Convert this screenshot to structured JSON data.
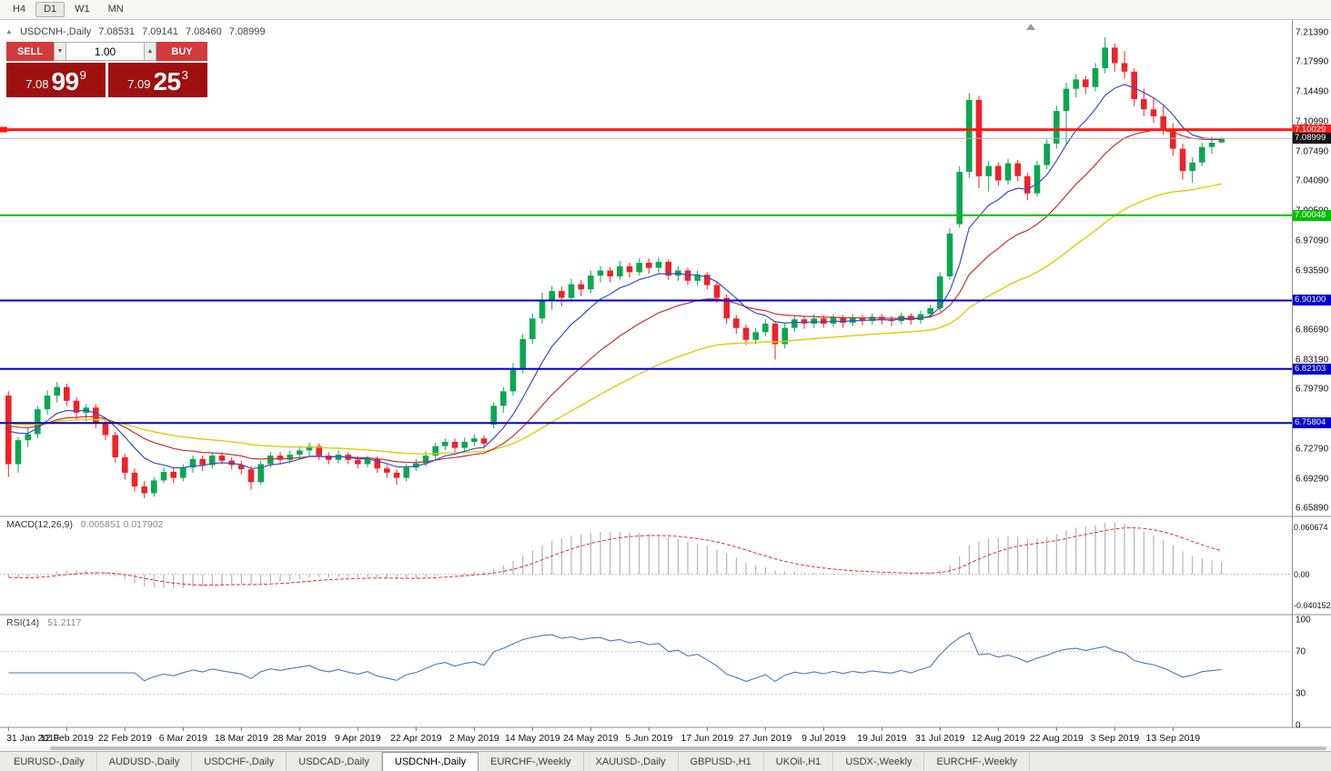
{
  "toolbar": {
    "timeframes": [
      {
        "label": "H4",
        "active": false
      },
      {
        "label": "D1",
        "active": true
      },
      {
        "label": "W1",
        "active": false
      },
      {
        "label": "MN",
        "active": false
      }
    ]
  },
  "icons": {
    "collapse_arrow": "▲",
    "spin_up": "▲",
    "spin_down": "▼"
  },
  "chart_header": {
    "symbol": "USDCNH-,Daily",
    "open": "7.08531",
    "high": "7.09141",
    "low": "7.08460",
    "close": "7.08999"
  },
  "trade_panel": {
    "sell_label": "SELL",
    "buy_label": "BUY",
    "volume": "1.00",
    "sell_price": {
      "whole": "7.08",
      "pips": "99",
      "pipette": "9"
    },
    "buy_price": {
      "whole": "7.09",
      "pips": "25",
      "pipette": "3"
    }
  },
  "price_axis": {
    "labels": [
      "7.21390",
      "7.17990",
      "7.14490",
      "7.10990",
      "7.07490",
      "7.04090",
      "7.00590",
      "6.97090",
      "6.93590",
      "6.86690",
      "6.83190",
      "6.79790",
      "6.72790",
      "6.69290",
      "6.65890"
    ]
  },
  "current_price": {
    "text": "7.08999",
    "value": 7.08999,
    "badge_bg": "#141414",
    "badge_fg": "#ffffff",
    "line_color": "#b6b6b6"
  },
  "indicators": {
    "macd": {
      "name": "MACD(12,26,9)",
      "values": "0.005851 0.017902",
      "fast": 12,
      "slow": 26,
      "signal": 9,
      "axis": [
        {
          "text": "0.060674",
          "value": 0.060674
        },
        {
          "text": "0.00",
          "value": 0
        },
        {
          "text": "-0.040152",
          "value": -0.040152
        }
      ],
      "histogram_color": "#a6a6a6",
      "signal_color": "#e03232"
    },
    "rsi": {
      "name": "RSI(14)",
      "value": "51.2117",
      "period": 14,
      "axis": [
        {
          "text": "100",
          "value": 100
        },
        {
          "text": "70",
          "value": 70
        },
        {
          "text": "30",
          "value": 30
        },
        {
          "text": "0",
          "value": 0
        }
      ],
      "level_lines": [
        70,
        30
      ],
      "line_color": "#4a7ab5"
    }
  },
  "chart_data": {
    "type": "candlestick",
    "symbol": "USDCNH",
    "timeframe": "Daily",
    "up_color": "#0aa84f",
    "down_color": "#ef2228",
    "price_range": [
      6.649,
      7.224
    ],
    "bars_per_label": 6,
    "x_labels": [
      "31 Jan 2019",
      "12 Feb 2019",
      "22 Feb 2019",
      "6 Mar 2019",
      "18 Mar 2019",
      "28 Mar 2019",
      "9 Apr 2019",
      "22 Apr 2019",
      "2 May 2019",
      "14 May 2019",
      "24 May 2019",
      "5 Jun 2019",
      "17 Jun 2019",
      "27 Jun 2019",
      "9 Jul 2019",
      "19 Jul 2019",
      "31 Jul 2019",
      "12 Aug 2019",
      "22 Aug 2019",
      "3 Sep 2019",
      "13 Sep 2019"
    ],
    "levels": [
      {
        "text": "7.10029",
        "value": 7.10029,
        "color": "#ff1a1a",
        "width": 3,
        "left_marker": true
      },
      {
        "text": "7.00048",
        "value": 7.00048,
        "color": "#00c000",
        "width": 2
      },
      {
        "text": "6.90100",
        "value": 6.901,
        "color": "#0000cc",
        "width": 2
      },
      {
        "text": "6.82103",
        "value": 6.82103,
        "color": "#0000cc",
        "width": 2
      },
      {
        "text": "6.75804",
        "value": 6.75804,
        "color": "#0000cc",
        "width": 2
      }
    ],
    "moving_averages": [
      {
        "period": 8,
        "color": "#3b4cc8"
      },
      {
        "period": 20,
        "color": "#c83232"
      },
      {
        "period": 45,
        "color": "#e0cc00"
      }
    ],
    "candles": [
      [
        6.79,
        6.795,
        6.695,
        6.71
      ],
      [
        6.71,
        6.742,
        6.7,
        6.738
      ],
      [
        6.738,
        6.752,
        6.73,
        6.745
      ],
      [
        6.745,
        6.778,
        6.74,
        6.774
      ],
      [
        6.774,
        6.796,
        6.768,
        6.79
      ],
      [
        6.79,
        6.806,
        6.782,
        6.8
      ],
      [
        6.8,
        6.804,
        6.778,
        6.784
      ],
      [
        6.784,
        6.788,
        6.762,
        6.77
      ],
      [
        6.77,
        6.78,
        6.76,
        6.776
      ],
      [
        6.776,
        6.78,
        6.752,
        6.758
      ],
      [
        6.758,
        6.762,
        6.738,
        6.744
      ],
      [
        6.744,
        6.748,
        6.712,
        6.718
      ],
      [
        6.718,
        6.722,
        6.692,
        6.7
      ],
      [
        6.7,
        6.705,
        6.678,
        6.684
      ],
      [
        6.684,
        6.69,
        6.67,
        6.676
      ],
      [
        6.676,
        6.695,
        6.672,
        6.691
      ],
      [
        6.691,
        6.706,
        6.688,
        6.701
      ],
      [
        6.701,
        6.706,
        6.688,
        6.694
      ],
      [
        6.694,
        6.71,
        6.69,
        6.706
      ],
      [
        6.706,
        6.72,
        6.7,
        6.716
      ],
      [
        6.716,
        6.72,
        6.702,
        6.709
      ],
      [
        6.709,
        6.724,
        6.705,
        6.72
      ],
      [
        6.72,
        6.724,
        6.71,
        6.714
      ],
      [
        6.714,
        6.718,
        6.704,
        6.709
      ],
      [
        6.709,
        6.714,
        6.698,
        6.704
      ],
      [
        6.704,
        6.708,
        6.68,
        6.689
      ],
      [
        6.689,
        6.714,
        6.686,
        6.71
      ],
      [
        6.71,
        6.724,
        6.706,
        6.72
      ],
      [
        6.72,
        6.724,
        6.71,
        6.715
      ],
      [
        6.715,
        6.726,
        6.711,
        6.721
      ],
      [
        6.721,
        6.73,
        6.716,
        6.726
      ],
      [
        6.726,
        6.735,
        6.72,
        6.731
      ],
      [
        6.731,
        6.734,
        6.715,
        6.72
      ],
      [
        6.72,
        6.724,
        6.71,
        6.715
      ],
      [
        6.715,
        6.726,
        6.711,
        6.721
      ],
      [
        6.721,
        6.724,
        6.71,
        6.715
      ],
      [
        6.715,
        6.719,
        6.705,
        6.71
      ],
      [
        6.71,
        6.72,
        6.706,
        6.716
      ],
      [
        6.716,
        6.719,
        6.7,
        6.705
      ],
      [
        6.705,
        6.709,
        6.694,
        6.7
      ],
      [
        6.7,
        6.704,
        6.686,
        6.694
      ],
      [
        6.694,
        6.71,
        6.69,
        6.706
      ],
      [
        6.706,
        6.716,
        6.702,
        6.711
      ],
      [
        6.711,
        6.725,
        6.707,
        6.72
      ],
      [
        6.72,
        6.735,
        6.716,
        6.731
      ],
      [
        6.731,
        6.74,
        6.726,
        6.736
      ],
      [
        6.736,
        6.74,
        6.724,
        6.729
      ],
      [
        6.729,
        6.741,
        6.725,
        6.736
      ],
      [
        6.736,
        6.745,
        6.731,
        6.74
      ],
      [
        6.74,
        6.744,
        6.728,
        6.734
      ],
      [
        6.756,
        6.782,
        6.752,
        6.778
      ],
      [
        6.778,
        6.8,
        6.77,
        6.795
      ],
      [
        6.795,
        6.828,
        6.79,
        6.822
      ],
      [
        6.822,
        6.862,
        6.816,
        6.856
      ],
      [
        6.856,
        6.886,
        6.85,
        6.88
      ],
      [
        6.88,
        6.91,
        6.874,
        6.902
      ],
      [
        6.902,
        6.918,
        6.89,
        6.912
      ],
      [
        6.912,
        6.917,
        6.894,
        6.904
      ],
      [
        6.904,
        6.926,
        6.899,
        6.92
      ],
      [
        6.92,
        6.925,
        6.906,
        6.914
      ],
      [
        6.914,
        6.936,
        6.909,
        6.93
      ],
      [
        6.93,
        6.941,
        6.922,
        6.936
      ],
      [
        6.936,
        6.94,
        6.922,
        6.929
      ],
      [
        6.929,
        6.947,
        6.925,
        6.941
      ],
      [
        6.941,
        6.945,
        6.928,
        6.934
      ],
      [
        6.934,
        6.95,
        6.93,
        6.945
      ],
      [
        6.945,
        6.95,
        6.932,
        6.939
      ],
      [
        6.939,
        6.951,
        6.934,
        6.946
      ],
      [
        6.946,
        6.949,
        6.925,
        6.93
      ],
      [
        6.93,
        6.941,
        6.924,
        6.936
      ],
      [
        6.936,
        6.939,
        6.919,
        6.924
      ],
      [
        6.924,
        6.936,
        6.918,
        6.931
      ],
      [
        6.931,
        6.934,
        6.914,
        6.919
      ],
      [
        6.919,
        6.923,
        6.898,
        6.904
      ],
      [
        6.904,
        6.908,
        6.874,
        6.88
      ],
      [
        6.88,
        6.884,
        6.862,
        6.869
      ],
      [
        6.869,
        6.873,
        6.849,
        6.855
      ],
      [
        6.855,
        6.869,
        6.85,
        6.864
      ],
      [
        6.864,
        6.879,
        6.859,
        6.874
      ],
      [
        6.874,
        6.877,
        6.832,
        6.85
      ],
      [
        6.85,
        6.874,
        6.845,
        6.869
      ],
      [
        6.869,
        6.884,
        6.864,
        6.879
      ],
      [
        6.879,
        6.883,
        6.868,
        6.874
      ],
      [
        6.874,
        6.885,
        6.869,
        6.88
      ],
      [
        6.88,
        6.884,
        6.869,
        6.874
      ],
      [
        6.874,
        6.885,
        6.87,
        6.881
      ],
      [
        6.881,
        6.884,
        6.869,
        6.875
      ],
      [
        6.875,
        6.885,
        6.871,
        6.881
      ],
      [
        6.881,
        6.884,
        6.872,
        6.877
      ],
      [
        6.877,
        6.886,
        6.873,
        6.882
      ],
      [
        6.882,
        6.885,
        6.873,
        6.879
      ],
      [
        6.879,
        6.883,
        6.871,
        6.877
      ],
      [
        6.877,
        6.887,
        6.873,
        6.883
      ],
      [
        6.883,
        6.886,
        6.873,
        6.878
      ],
      [
        6.878,
        6.889,
        6.874,
        6.885
      ],
      [
        6.885,
        6.896,
        6.881,
        6.892
      ],
      [
        6.892,
        6.934,
        6.888,
        6.929
      ],
      [
        6.929,
        6.985,
        6.925,
        6.979
      ],
      [
        6.99,
        7.058,
        6.986,
        7.051
      ],
      [
        7.051,
        7.143,
        7.044,
        7.135
      ],
      [
        7.135,
        7.14,
        7.032,
        7.046
      ],
      [
        7.046,
        7.064,
        7.028,
        7.058
      ],
      [
        7.058,
        7.062,
        7.035,
        7.041
      ],
      [
        7.041,
        7.066,
        7.036,
        7.061
      ],
      [
        7.061,
        7.065,
        7.04,
        7.046
      ],
      [
        7.046,
        7.05,
        7.018,
        7.026
      ],
      [
        7.026,
        7.064,
        7.022,
        7.059
      ],
      [
        7.059,
        7.089,
        7.054,
        7.084
      ],
      [
        7.084,
        7.128,
        7.078,
        7.122
      ],
      [
        7.122,
        7.155,
        7.082,
        7.148
      ],
      [
        7.148,
        7.165,
        7.138,
        7.159
      ],
      [
        7.159,
        7.163,
        7.142,
        7.15
      ],
      [
        7.15,
        7.178,
        7.145,
        7.172
      ],
      [
        7.172,
        7.208,
        7.166,
        7.196
      ],
      [
        7.196,
        7.201,
        7.168,
        7.178
      ],
      [
        7.178,
        7.192,
        7.16,
        7.168
      ],
      [
        7.168,
        7.172,
        7.128,
        7.136
      ],
      [
        7.136,
        7.148,
        7.116,
        7.124
      ],
      [
        7.124,
        7.138,
        7.108,
        7.116
      ],
      [
        7.116,
        7.128,
        7.094,
        7.1
      ],
      [
        7.1,
        7.108,
        7.07,
        7.078
      ],
      [
        7.078,
        7.084,
        7.042,
        7.052
      ],
      [
        7.052,
        7.068,
        7.038,
        7.062
      ],
      [
        7.062,
        7.085,
        7.058,
        7.08
      ],
      [
        7.08,
        7.092,
        7.072,
        7.085
      ],
      [
        7.08531,
        7.09141,
        7.0846,
        7.08999
      ]
    ]
  },
  "tabs": [
    {
      "label": "EURUSD-,Daily",
      "active": false
    },
    {
      "label": "AUDUSD-,Daily",
      "active": false
    },
    {
      "label": "USDCHF-,Daily",
      "active": false
    },
    {
      "label": "USDCAD-,Daily",
      "active": false
    },
    {
      "label": "USDCNH-,Daily",
      "active": true
    },
    {
      "label": "EURCHF-,Weekly",
      "active": false
    },
    {
      "label": "XAUUSD-,Daily",
      "active": false
    },
    {
      "label": "GBPUSD-,H1",
      "active": false
    },
    {
      "label": "UKOil-,H1",
      "active": false
    },
    {
      "label": "USDX-,Weekly",
      "active": false
    },
    {
      "label": "EURCHF-,Weekly",
      "active": false
    }
  ]
}
